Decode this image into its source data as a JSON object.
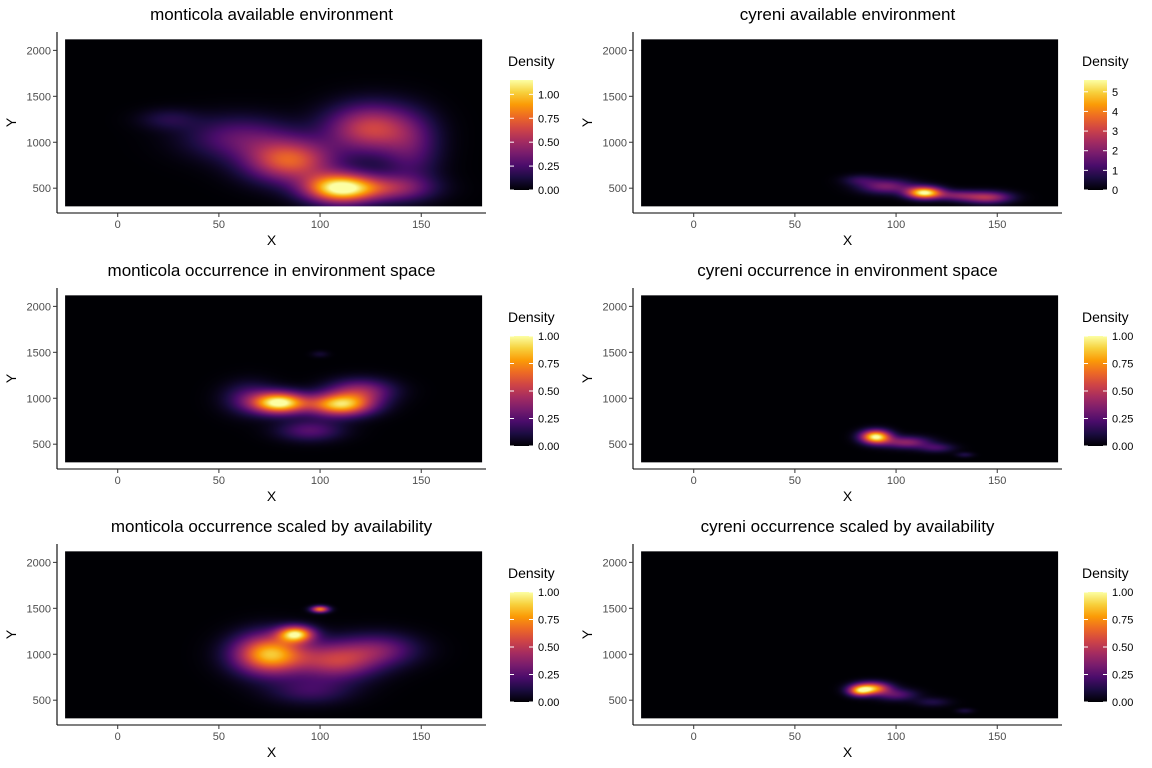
{
  "colors": {
    "background": "#ffffff",
    "panel_fill": "#000004",
    "axis": "#000000",
    "tick_text": "#4d4d4d",
    "colormap": "inferno",
    "colormap_stops": [
      "#000004",
      "#1b0c41",
      "#4a0c6b",
      "#781c6d",
      "#a52c60",
      "#cf4446",
      "#ed6925",
      "#fb9b06",
      "#f7d13d",
      "#fcffa4"
    ]
  },
  "chart_data": [
    {
      "type": "heatmap",
      "title": "monticola available environment",
      "xlabel": "X",
      "ylabel": "Y",
      "xlim": [
        -30,
        182
      ],
      "ylim": [
        230,
        2200
      ],
      "x_ticks": [
        0,
        50,
        100,
        150
      ],
      "y_ticks": [
        500,
        1000,
        1500,
        2000
      ],
      "legend": {
        "title": "Density",
        "placement": "right",
        "range": [
          0,
          1.15
        ],
        "ticks": [
          0,
          0.25,
          0.5,
          0.75,
          1.0
        ],
        "tick_labels": [
          "0.00",
          "0.25",
          "0.50",
          "0.75",
          "1.00"
        ]
      },
      "max_value": 1.15,
      "hotspots": [
        {
          "x": 110,
          "y": 500,
          "peak": 1.15,
          "sx": 12,
          "sy": 110
        },
        {
          "x": 85,
          "y": 800,
          "peak": 0.72,
          "sx": 15,
          "sy": 160
        },
        {
          "x": 125,
          "y": 1150,
          "peak": 0.62,
          "sx": 15,
          "sy": 180
        },
        {
          "x": 135,
          "y": 500,
          "peak": 0.42,
          "sx": 14,
          "sy": 100
        },
        {
          "x": 60,
          "y": 1050,
          "peak": 0.3,
          "sx": 18,
          "sy": 160
        },
        {
          "x": 25,
          "y": 1250,
          "peak": 0.14,
          "sx": 10,
          "sy": 80
        },
        {
          "x": 145,
          "y": 900,
          "peak": 0.25,
          "sx": 10,
          "sy": 250
        }
      ]
    },
    {
      "type": "heatmap",
      "title": "cyreni available environment",
      "xlabel": "X",
      "ylabel": "Y",
      "xlim": [
        -30,
        182
      ],
      "ylim": [
        230,
        2200
      ],
      "x_ticks": [
        0,
        50,
        100,
        150
      ],
      "y_ticks": [
        500,
        1000,
        1500,
        2000
      ],
      "legend": {
        "title": "Density",
        "placement": "right",
        "range": [
          0,
          5.6
        ],
        "ticks": [
          0,
          1,
          2,
          3,
          4,
          5
        ],
        "tick_labels": [
          "0",
          "1",
          "2",
          "3",
          "4",
          "5"
        ]
      },
      "max_value": 5.6,
      "hotspots": [
        {
          "x": 114,
          "y": 450,
          "peak": 5.6,
          "sx": 6,
          "sy": 45
        },
        {
          "x": 145,
          "y": 400,
          "peak": 2.6,
          "sx": 8,
          "sy": 45
        },
        {
          "x": 95,
          "y": 520,
          "peak": 1.9,
          "sx": 9,
          "sy": 55
        },
        {
          "x": 130,
          "y": 420,
          "peak": 1.6,
          "sx": 7,
          "sy": 40
        },
        {
          "x": 82,
          "y": 590,
          "peak": 0.8,
          "sx": 6,
          "sy": 40
        }
      ]
    },
    {
      "type": "heatmap",
      "title": "monticola occurrence in environment space",
      "xlabel": "X",
      "ylabel": "Y",
      "xlim": [
        -30,
        182
      ],
      "ylim": [
        230,
        2200
      ],
      "x_ticks": [
        0,
        50,
        100,
        150
      ],
      "y_ticks": [
        500,
        1000,
        1500,
        2000
      ],
      "legend": {
        "title": "Density",
        "placement": "right",
        "range": [
          0,
          1.0
        ],
        "ticks": [
          0,
          0.25,
          0.5,
          0.75,
          1.0
        ],
        "tick_labels": [
          "0.00",
          "0.25",
          "0.50",
          "0.75",
          "1.00"
        ]
      },
      "max_value": 1.0,
      "hotspots": [
        {
          "x": 80,
          "y": 950,
          "peak": 1.0,
          "sx": 9,
          "sy": 80
        },
        {
          "x": 110,
          "y": 930,
          "peak": 0.88,
          "sx": 11,
          "sy": 85
        },
        {
          "x": 120,
          "y": 1080,
          "peak": 0.38,
          "sx": 11,
          "sy": 90
        },
        {
          "x": 95,
          "y": 650,
          "peak": 0.25,
          "sx": 11,
          "sy": 80
        },
        {
          "x": 65,
          "y": 1000,
          "peak": 0.22,
          "sx": 9,
          "sy": 120
        },
        {
          "x": 100,
          "y": 1480,
          "peak": 0.08,
          "sx": 3,
          "sy": 25
        }
      ]
    },
    {
      "type": "heatmap",
      "title": "cyreni occurrence in environment space",
      "xlabel": "X",
      "ylabel": "Y",
      "xlim": [
        -30,
        182
      ],
      "ylim": [
        230,
        2200
      ],
      "x_ticks": [
        0,
        50,
        100,
        150
      ],
      "y_ticks": [
        500,
        1000,
        1500,
        2000
      ],
      "legend": {
        "title": "Density",
        "placement": "right",
        "range": [
          0,
          1.0
        ],
        "ticks": [
          0,
          0.25,
          0.5,
          0.75,
          1.0
        ],
        "tick_labels": [
          "0.00",
          "0.25",
          "0.50",
          "0.75",
          "1.00"
        ]
      },
      "max_value": 1.0,
      "hotspots": [
        {
          "x": 90,
          "y": 580,
          "peak": 1.0,
          "sx": 5,
          "sy": 50
        },
        {
          "x": 105,
          "y": 520,
          "peak": 0.38,
          "sx": 8,
          "sy": 45
        },
        {
          "x": 120,
          "y": 460,
          "peak": 0.2,
          "sx": 6,
          "sy": 35
        },
        {
          "x": 134,
          "y": 385,
          "peak": 0.12,
          "sx": 3,
          "sy": 20
        }
      ]
    },
    {
      "type": "heatmap",
      "title": "monticola occurrence scaled by availability",
      "xlabel": "X",
      "ylabel": "Y",
      "xlim": [
        -30,
        182
      ],
      "ylim": [
        230,
        2200
      ],
      "x_ticks": [
        0,
        50,
        100,
        150
      ],
      "y_ticks": [
        500,
        1000,
        1500,
        2000
      ],
      "legend": {
        "title": "Density",
        "placement": "right",
        "range": [
          0,
          1.0
        ],
        "ticks": [
          0,
          0.25,
          0.5,
          0.75,
          1.0
        ],
        "tick_labels": [
          "0.00",
          "0.25",
          "0.50",
          "0.75",
          "1.00"
        ]
      },
      "max_value": 1.0,
      "hotspots": [
        {
          "x": 88,
          "y": 1220,
          "peak": 0.85,
          "sx": 6,
          "sy": 60
        },
        {
          "x": 75,
          "y": 1000,
          "peak": 0.85,
          "sx": 12,
          "sy": 150
        },
        {
          "x": 100,
          "y": 1490,
          "peak": 0.72,
          "sx": 3,
          "sy": 25
        },
        {
          "x": 108,
          "y": 930,
          "peak": 0.5,
          "sx": 14,
          "sy": 140
        },
        {
          "x": 130,
          "y": 1050,
          "peak": 0.28,
          "sx": 13,
          "sy": 120
        },
        {
          "x": 95,
          "y": 600,
          "peak": 0.18,
          "sx": 14,
          "sy": 100
        }
      ]
    },
    {
      "type": "heatmap",
      "title": "cyreni occurrence scaled by availability",
      "xlabel": "X",
      "ylabel": "Y",
      "xlim": [
        -30,
        182
      ],
      "ylim": [
        230,
        2200
      ],
      "x_ticks": [
        0,
        50,
        100,
        150
      ],
      "y_ticks": [
        500,
        1000,
        1500,
        2000
      ],
      "legend": {
        "title": "Density",
        "placement": "right",
        "range": [
          0,
          1.0
        ],
        "ticks": [
          0,
          0.25,
          0.5,
          0.75,
          1.0
        ],
        "tick_labels": [
          "0.00",
          "0.25",
          "0.50",
          "0.75",
          "1.00"
        ]
      },
      "max_value": 1.0,
      "hotspots": [
        {
          "x": 88,
          "y": 630,
          "peak": 0.78,
          "sx": 6,
          "sy": 45
        },
        {
          "x": 82,
          "y": 600,
          "peak": 0.6,
          "sx": 4,
          "sy": 40
        },
        {
          "x": 100,
          "y": 560,
          "peak": 0.25,
          "sx": 7,
          "sy": 45
        },
        {
          "x": 118,
          "y": 480,
          "peak": 0.12,
          "sx": 6,
          "sy": 35
        },
        {
          "x": 134,
          "y": 385,
          "peak": 0.1,
          "sx": 3,
          "sy": 20
        }
      ]
    }
  ]
}
